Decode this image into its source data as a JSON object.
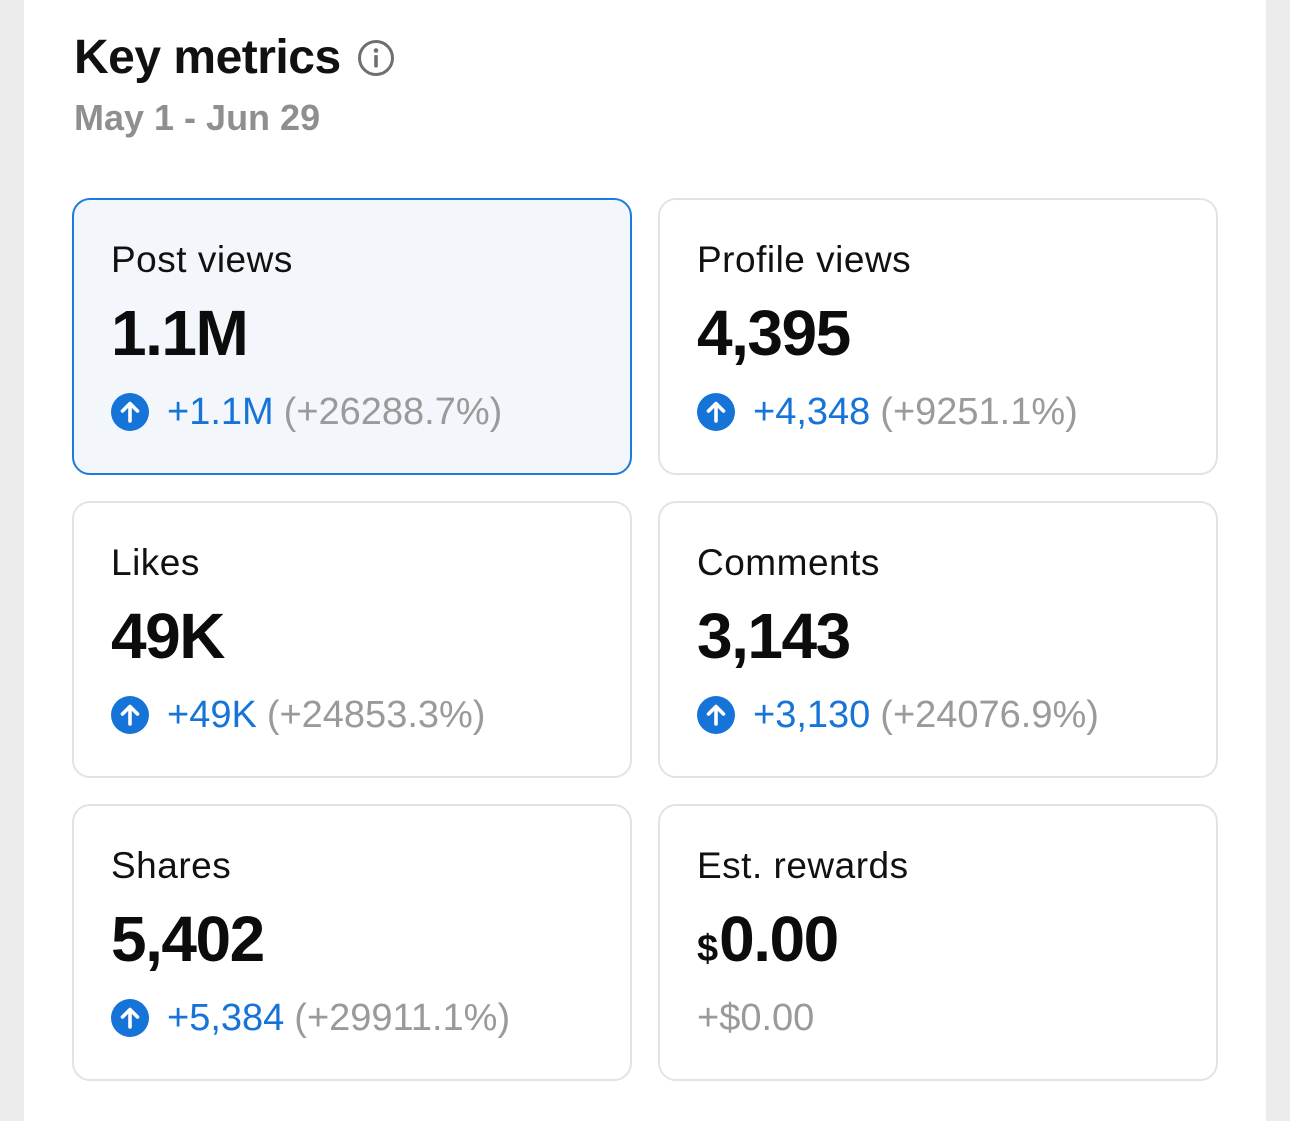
{
  "header": {
    "title": "Key metrics",
    "info_icon": "info-icon",
    "date_range": "May 1 - Jun 29"
  },
  "colors": {
    "accent": "#1673d8",
    "selected_border": "#1c7ae0",
    "selected_bg": "#f3f7fc",
    "muted_text": "#9a9a9a"
  },
  "metrics": [
    {
      "label": "Post views",
      "value": "1.1M",
      "delta": "+1.1M",
      "percent": "(+26288.7%)",
      "selected": true,
      "icon": "arrow-up-circle-icon"
    },
    {
      "label": "Profile views",
      "value": "4,395",
      "delta": "+4,348",
      "percent": "(+9251.1%)",
      "selected": false,
      "icon": "arrow-up-circle-icon"
    },
    {
      "label": "Likes",
      "value": "49K",
      "delta": "+49K",
      "percent": "(+24853.3%)",
      "selected": false,
      "icon": "arrow-up-circle-icon"
    },
    {
      "label": "Comments",
      "value": "3,143",
      "delta": "+3,130",
      "percent": "(+24076.9%)",
      "selected": false,
      "icon": "arrow-up-circle-icon"
    },
    {
      "label": "Shares",
      "value": "5,402",
      "delta": "+5,384",
      "percent": "(+29911.1%)",
      "selected": false,
      "icon": "arrow-up-circle-icon"
    },
    {
      "label": "Est. rewards",
      "currency": "$",
      "value": "0.00",
      "delta": "+$0.00",
      "selected": false
    }
  ]
}
